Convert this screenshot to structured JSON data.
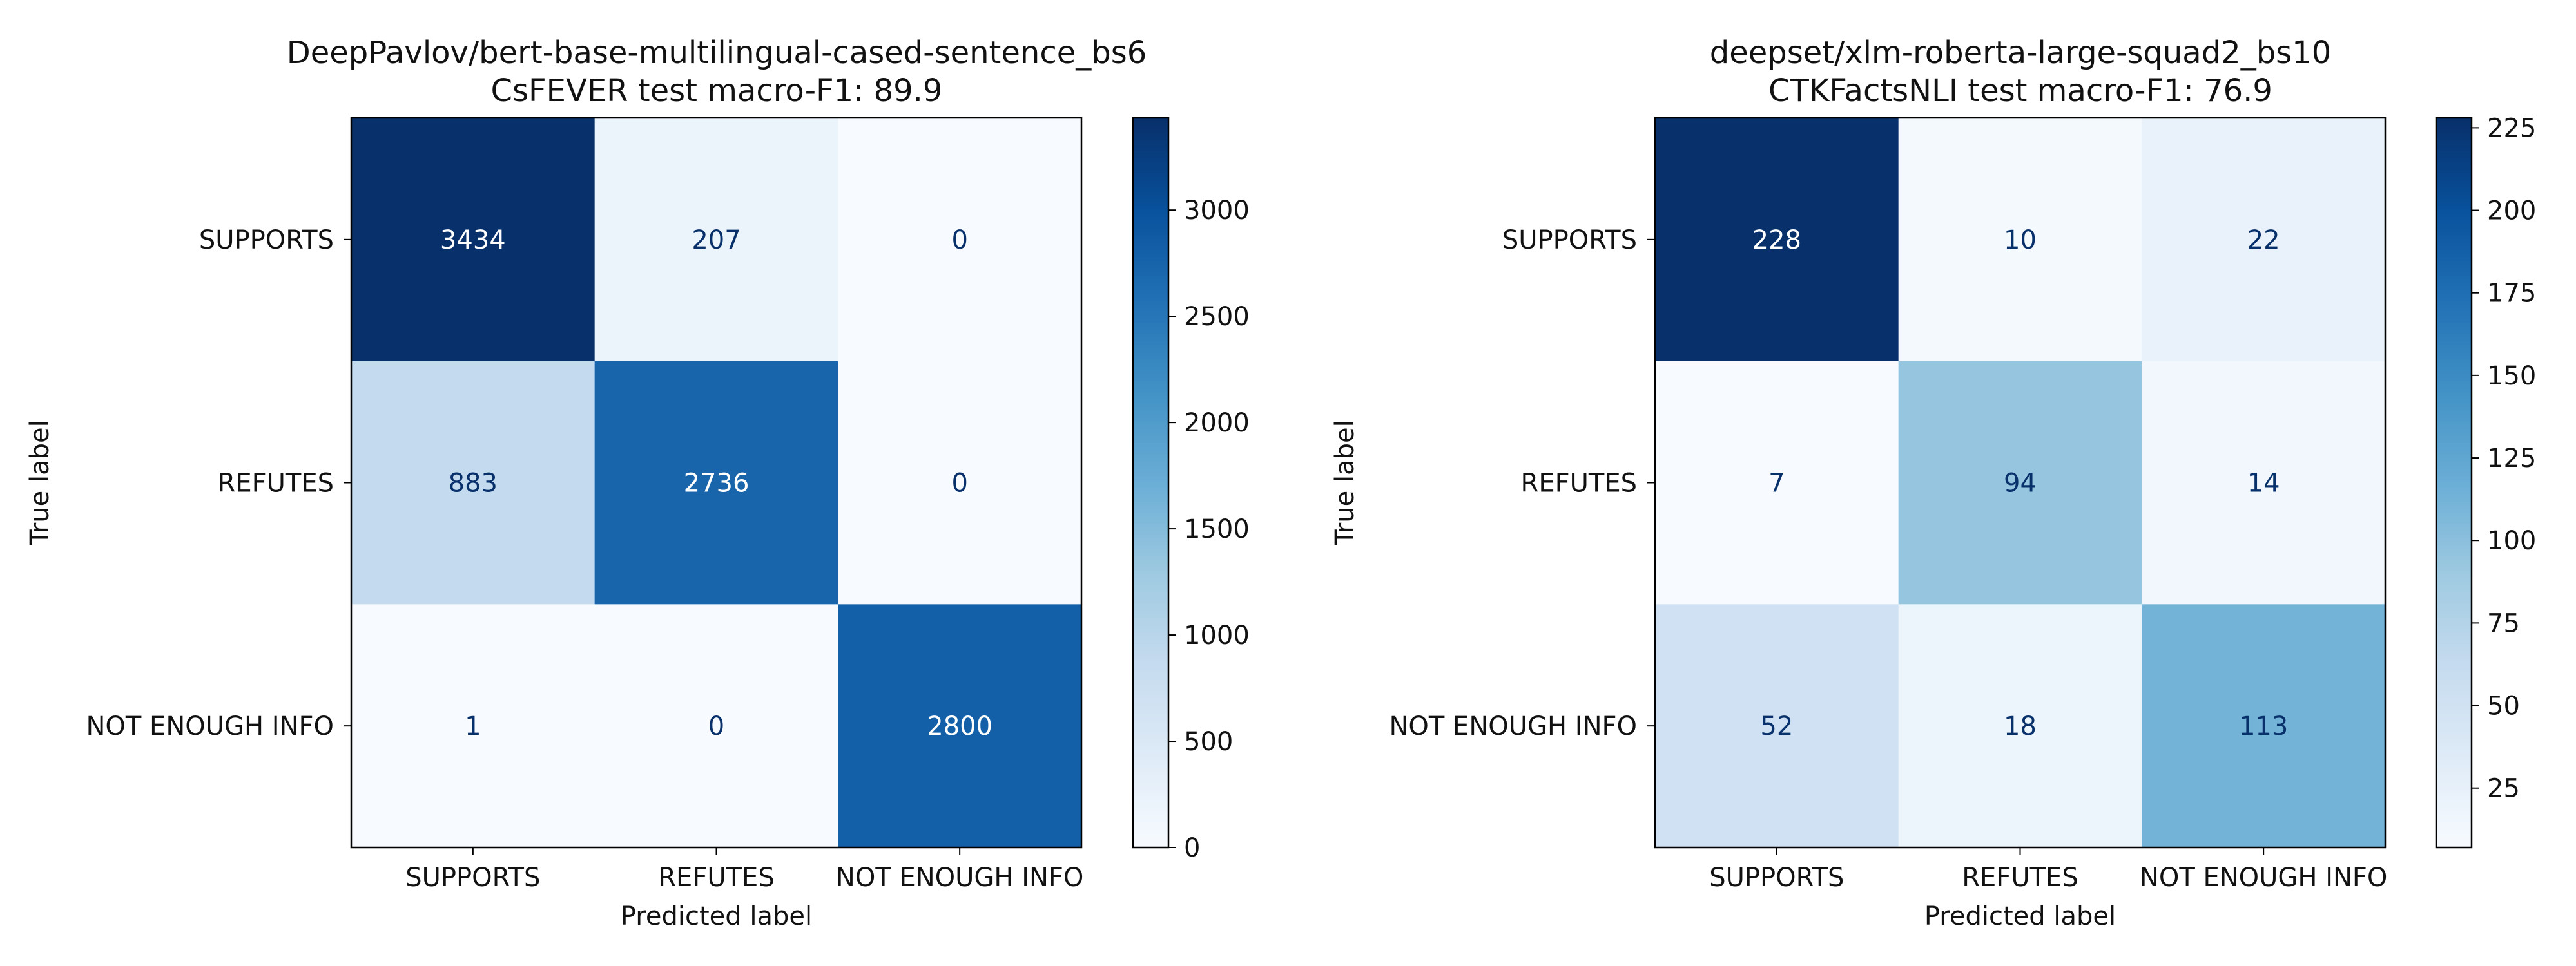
{
  "chart_data": [
    {
      "type": "heatmap",
      "title": "DeepPavlov/bert-base-multilingual-cased-sentence_bs6",
      "subtitle": "CsFEVER  test macro-F1: 89.9",
      "xlabel": "Predicted label",
      "ylabel": "True label",
      "x_categories": [
        "SUPPORTS",
        "REFUTES",
        "NOT ENOUGH INFO"
      ],
      "y_categories": [
        "SUPPORTS",
        "REFUTES",
        "NOT ENOUGH INFO"
      ],
      "matrix": [
        [
          3434,
          207,
          0
        ],
        [
          883,
          2736,
          0
        ],
        [
          1,
          0,
          2800
        ]
      ],
      "colormap": "Blues",
      "colorbar_range": [
        0,
        3434
      ],
      "colorbar_ticks": [
        0,
        500,
        1000,
        1500,
        2000,
        2500,
        3000
      ]
    },
    {
      "type": "heatmap",
      "title": "deepset/xlm-roberta-large-squad2_bs10",
      "subtitle": "CTKFactsNLI test macro-F1: 76.9",
      "xlabel": "Predicted label",
      "ylabel": "True label",
      "x_categories": [
        "SUPPORTS",
        "REFUTES",
        "NOT ENOUGH INFO"
      ],
      "y_categories": [
        "SUPPORTS",
        "REFUTES",
        "NOT ENOUGH INFO"
      ],
      "matrix": [
        [
          228,
          10,
          22
        ],
        [
          7,
          94,
          14
        ],
        [
          52,
          18,
          113
        ]
      ],
      "colormap": "Blues",
      "colorbar_range": [
        7,
        228
      ],
      "colorbar_ticks": [
        25,
        50,
        75,
        100,
        125,
        150,
        175,
        200,
        225
      ]
    }
  ],
  "colors": {
    "blues": [
      "#f7fbff",
      "#deebf7",
      "#c6dbef",
      "#9ecae1",
      "#6baed6",
      "#4292c6",
      "#2171b5",
      "#08519c",
      "#08306b"
    ],
    "text_dark": "#08306b",
    "text_light": "#ffffff"
  }
}
